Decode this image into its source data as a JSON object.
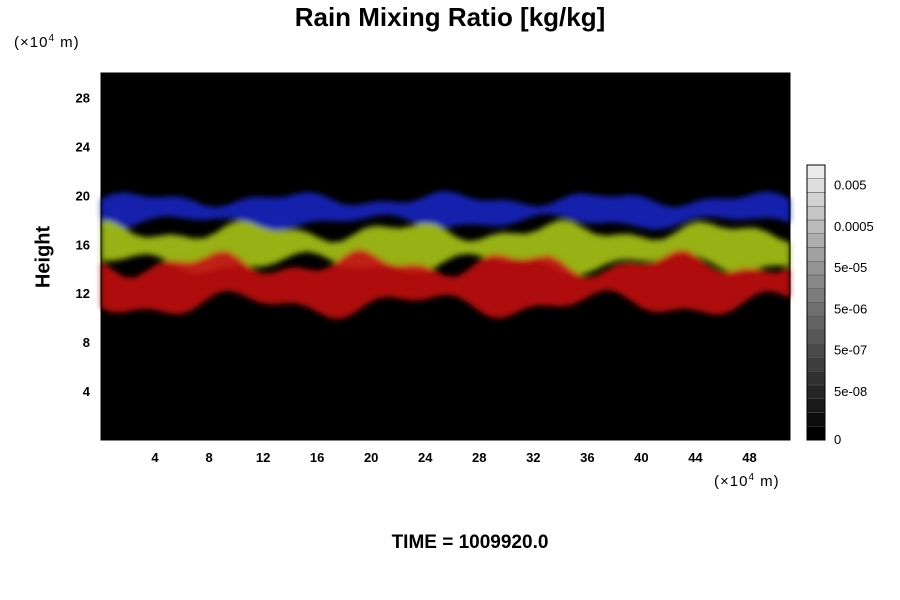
{
  "chart_data": {
    "type": "heatmap",
    "title": "Rain Mixing Ratio [kg/kg]",
    "ylabel": "Height",
    "x_unit": {
      "prefix": "(×10",
      "exp": "4",
      "suffix": " m)"
    },
    "y_unit": {
      "prefix": "(×10",
      "exp": "4",
      "suffix": " m)"
    },
    "xlim": [
      0,
      51
    ],
    "ylim": [
      0,
      30
    ],
    "x_ticks": [
      4,
      8,
      12,
      16,
      20,
      24,
      28,
      32,
      36,
      40,
      44,
      48
    ],
    "y_ticks": [
      4,
      8,
      12,
      16,
      20,
      24,
      28
    ],
    "layers": [
      {
        "name": "upper",
        "color": "#1a22c0",
        "y_range": [
          17.5,
          20
        ]
      },
      {
        "name": "middle",
        "color": "#a8c41a",
        "y_range": [
          14,
          17.5
        ]
      },
      {
        "name": "lower",
        "color": "#c21212",
        "y_range": [
          10.5,
          15
        ]
      }
    ],
    "colorbar": {
      "levels": 20,
      "labels": [
        "0",
        "5e-08",
        "5e-07",
        "5e-06",
        "5e-05",
        "0.0005",
        "0.005"
      ]
    },
    "footer": "TIME = 1009920.0",
    "colors": {
      "background": "#000000",
      "frame": "#000000"
    }
  }
}
